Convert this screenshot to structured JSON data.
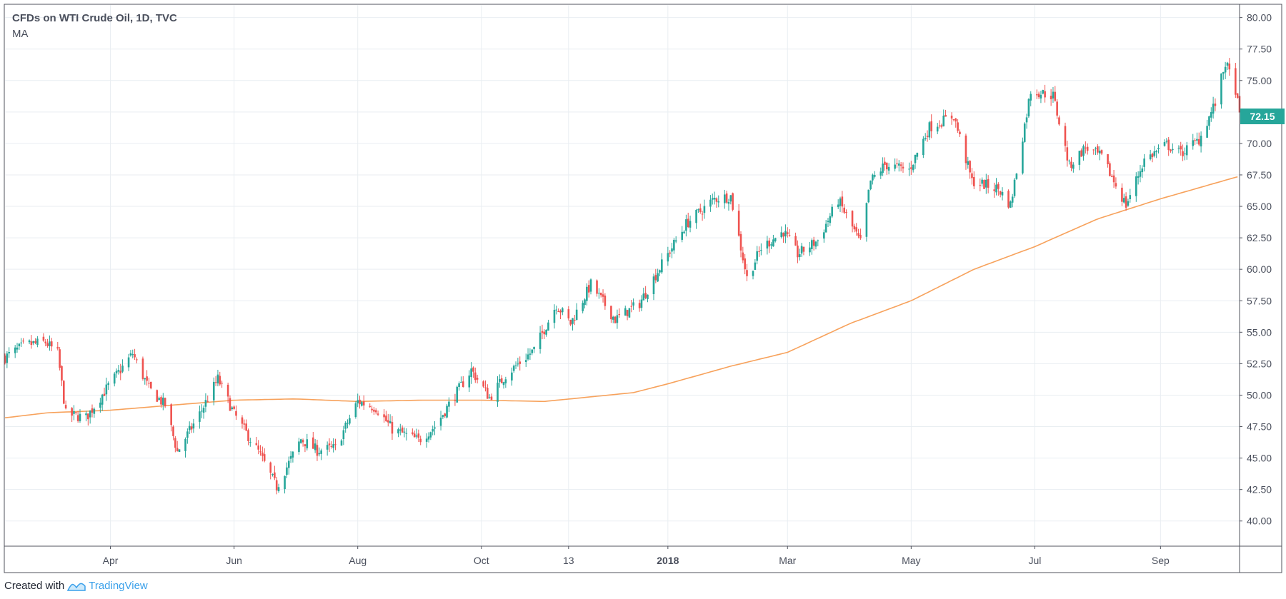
{
  "header": {
    "title": "CFDs on WTI Crude Oil, 1D, TVC",
    "indicator": "MA"
  },
  "footer": {
    "created_with": "Created with",
    "brand": "TradingView"
  },
  "colors": {
    "up": "#26a69a",
    "down": "#ef5350",
    "ma": "#f7a25c",
    "grid": "#e9eef2",
    "axis": "#50535e",
    "last_price_bg": "#26a69a"
  },
  "chart_data": {
    "type": "candlestick",
    "title": "CFDs on WTI Crude Oil, 1D, TVC",
    "y_axis": {
      "range": [
        38.0,
        81.0
      ],
      "ticks": [
        "40.00",
        "42.50",
        "45.00",
        "47.50",
        "50.00",
        "52.50",
        "55.00",
        "57.50",
        "60.00",
        "62.50",
        "65.00",
        "67.50",
        "70.00",
        "72.50",
        "75.00",
        "77.50",
        "80.00"
      ]
    },
    "x_axis": {
      "range": [
        "2017-02-08",
        "2018-10-10"
      ],
      "ticks": [
        {
          "date": "2017-04-01",
          "label": "Apr",
          "bold": false
        },
        {
          "date": "2017-06-01",
          "label": "Jun",
          "bold": false
        },
        {
          "date": "2017-08-01",
          "label": "Aug",
          "bold": false
        },
        {
          "date": "2017-10-01",
          "label": "Oct",
          "bold": false
        },
        {
          "date": "2017-11-13",
          "label": "13",
          "bold": false
        },
        {
          "date": "2018-01-01",
          "label": "2018",
          "bold": true
        },
        {
          "date": "2018-03-01",
          "label": "Mar",
          "bold": false
        },
        {
          "date": "2018-05-01",
          "label": "May",
          "bold": false
        },
        {
          "date": "2018-07-01",
          "label": "Jul",
          "bold": false
        },
        {
          "date": "2018-09-01",
          "label": "Sep",
          "bold": false
        }
      ]
    },
    "last_price": "72.15",
    "close_path": [
      [
        "2017-02-08",
        53.0
      ],
      [
        "2017-02-18",
        54.0
      ],
      [
        "2017-02-28",
        54.2
      ],
      [
        "2017-03-06",
        53.3
      ],
      [
        "2017-03-10",
        48.5
      ],
      [
        "2017-03-20",
        48.2
      ],
      [
        "2017-03-30",
        50.5
      ],
      [
        "2017-04-12",
        53.3
      ],
      [
        "2017-04-20",
        50.5
      ],
      [
        "2017-04-28",
        49.2
      ],
      [
        "2017-05-04",
        45.5
      ],
      [
        "2017-05-15",
        48.5
      ],
      [
        "2017-05-24",
        51.3
      ],
      [
        "2017-06-01",
        48.5
      ],
      [
        "2017-06-13",
        45.5
      ],
      [
        "2017-06-22",
        42.7
      ],
      [
        "2017-07-04",
        46.5
      ],
      [
        "2017-07-12",
        45.6
      ],
      [
        "2017-07-21",
        45.8
      ],
      [
        "2017-08-01",
        49.5
      ],
      [
        "2017-08-10",
        49.0
      ],
      [
        "2017-08-18",
        47.3
      ],
      [
        "2017-08-31",
        46.4
      ],
      [
        "2017-09-08",
        47.5
      ],
      [
        "2017-09-20",
        50.5
      ],
      [
        "2017-09-26",
        52.0
      ],
      [
        "2017-10-05",
        49.8
      ],
      [
        "2017-10-13",
        51.6
      ],
      [
        "2017-10-27",
        53.6
      ],
      [
        "2017-11-07",
        57.2
      ],
      [
        "2017-11-14",
        55.7
      ],
      [
        "2017-11-24",
        58.8
      ],
      [
        "2017-12-06",
        56.0
      ],
      [
        "2017-12-18",
        57.3
      ],
      [
        "2017-12-29",
        60.4
      ],
      [
        "2018-01-10",
        63.6
      ],
      [
        "2018-01-24",
        65.6
      ],
      [
        "2018-02-01",
        65.8
      ],
      [
        "2018-02-09",
        59.3
      ],
      [
        "2018-02-16",
        61.7
      ],
      [
        "2018-02-27",
        63.0
      ],
      [
        "2018-03-06",
        61.2
      ],
      [
        "2018-03-16",
        62.3
      ],
      [
        "2018-03-26",
        65.5
      ],
      [
        "2018-04-06",
        62.1
      ],
      [
        "2018-04-11",
        67.0
      ],
      [
        "2018-04-18",
        68.3
      ],
      [
        "2018-04-30",
        67.9
      ],
      [
        "2018-05-10",
        71.3
      ],
      [
        "2018-05-22",
        72.2
      ],
      [
        "2018-05-31",
        67.0
      ],
      [
        "2018-06-13",
        66.4
      ],
      [
        "2018-06-19",
        65.1
      ],
      [
        "2018-06-29",
        74.2
      ],
      [
        "2018-07-10",
        73.8
      ],
      [
        "2018-07-18",
        68.2
      ],
      [
        "2018-07-26",
        69.7
      ],
      [
        "2018-08-03",
        68.9
      ],
      [
        "2018-08-15",
        65.1
      ],
      [
        "2018-08-24",
        68.7
      ],
      [
        "2018-09-04",
        69.9
      ],
      [
        "2018-09-11",
        69.2
      ],
      [
        "2018-09-20",
        70.3
      ],
      [
        "2018-09-28",
        73.2
      ],
      [
        "2018-10-03",
        76.4
      ],
      [
        "2018-10-08",
        74.3
      ],
      [
        "2018-10-10",
        72.15
      ]
    ],
    "ma_path": [
      [
        "2017-02-08",
        48.2
      ],
      [
        "2017-03-01",
        48.6
      ],
      [
        "2017-04-01",
        48.8
      ],
      [
        "2017-05-01",
        49.2
      ],
      [
        "2017-06-01",
        49.6
      ],
      [
        "2017-07-01",
        49.7
      ],
      [
        "2017-08-01",
        49.5
      ],
      [
        "2017-09-01",
        49.6
      ],
      [
        "2017-10-01",
        49.6
      ],
      [
        "2017-11-01",
        49.5
      ],
      [
        "2017-11-20",
        49.8
      ],
      [
        "2017-12-15",
        50.2
      ],
      [
        "2018-01-01",
        50.9
      ],
      [
        "2018-02-01",
        52.3
      ],
      [
        "2018-03-01",
        53.4
      ],
      [
        "2018-04-01",
        55.7
      ],
      [
        "2018-05-01",
        57.5
      ],
      [
        "2018-06-01",
        60.0
      ],
      [
        "2018-07-01",
        61.8
      ],
      [
        "2018-08-01",
        64.0
      ],
      [
        "2018-09-01",
        65.6
      ],
      [
        "2018-10-10",
        67.4
      ]
    ]
  }
}
